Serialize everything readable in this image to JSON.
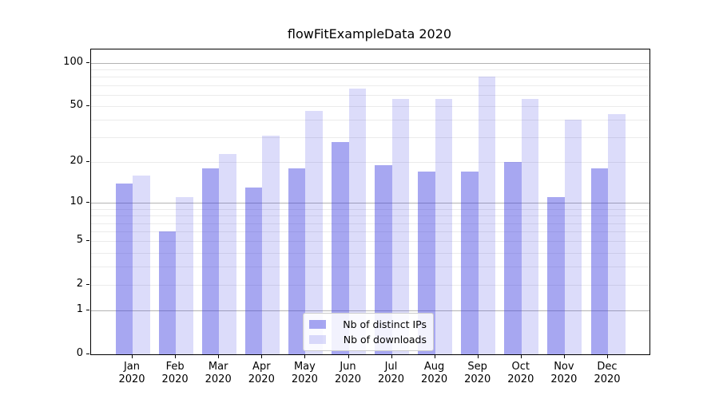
{
  "chart_data": {
    "type": "bar",
    "title": "flowFitExampleData 2020",
    "months": [
      "Jan",
      "Feb",
      "Mar",
      "Apr",
      "May",
      "Jun",
      "Jul",
      "Aug",
      "Sep",
      "Oct",
      "Nov",
      "Dec"
    ],
    "year_label": "2020",
    "series": [
      {
        "name": "Nb of distinct IPs",
        "base_color": "#3c3ce1",
        "alpha": 0.45,
        "rendered_color": "#a8a8f2",
        "values": [
          14,
          6,
          18,
          13,
          18,
          28,
          19,
          17,
          17,
          20,
          11,
          18
        ]
      },
      {
        "name": "Nb of downloads",
        "base_color": "#3c3ce1",
        "alpha": 0.18,
        "rendered_color": "#dcdcf9",
        "values": [
          16,
          11,
          23,
          31,
          46,
          66,
          56,
          56,
          80,
          56,
          40,
          44
        ]
      }
    ],
    "yscale": "log1p",
    "ylim": [
      0,
      124
    ],
    "yticks": [
      100,
      50,
      20,
      10,
      5,
      2,
      1,
      0
    ],
    "gridlines": {
      "major": [
        1,
        10,
        100
      ],
      "minor": [
        2,
        3,
        4,
        5,
        6,
        7,
        8,
        9,
        20,
        30,
        40,
        50,
        60,
        70,
        80,
        90
      ]
    },
    "legend_position": "lower center",
    "grid": true
  }
}
